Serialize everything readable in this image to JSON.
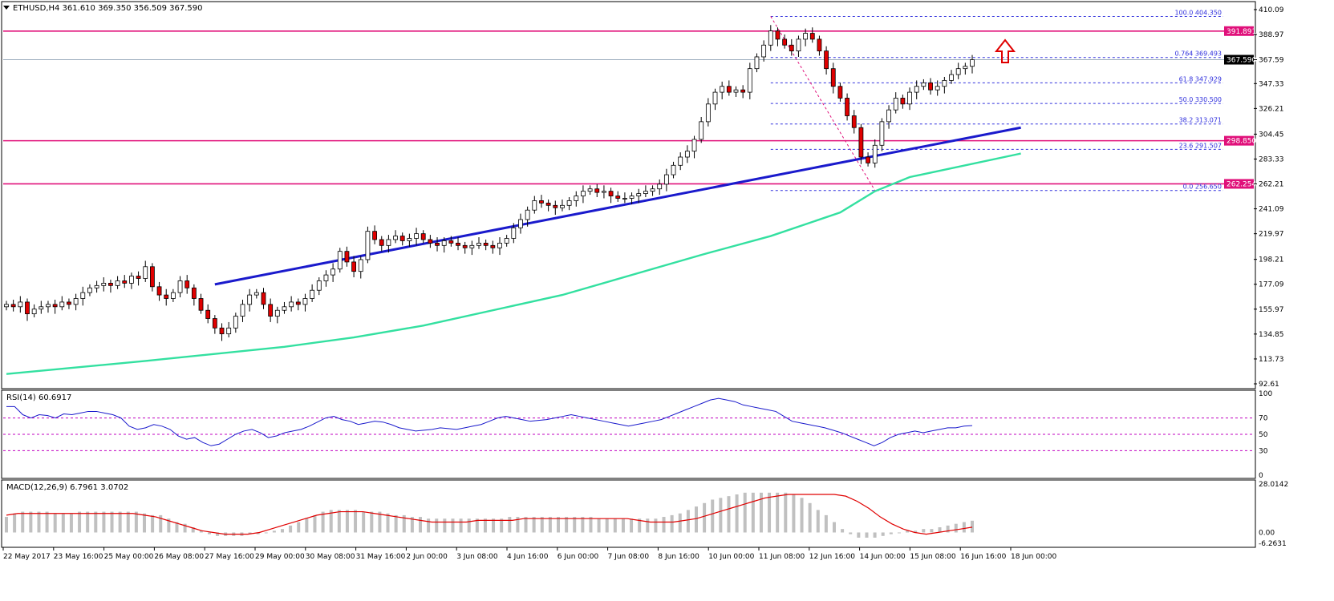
{
  "header": {
    "symbol_line": "ETHUSD,H4  361.610 369.350 356.509 367.590",
    "rsi_line": "RSI(14) 60.6917",
    "macd_line": "MACD(12,26,9) 6.7961 3.0702"
  },
  "colors": {
    "bull": "#ffffff",
    "bear": "#e00000",
    "trendline": "#1a1acc",
    "ma": "#33e0a0",
    "level": "#e0107a",
    "fib": "#3030dd",
    "rsi": "#1a1acc",
    "macd_hist": "#c0c0c0",
    "macd_signal": "#e00000",
    "arrow": "#e00000"
  },
  "chart_data": [
    {
      "type": "candlestick",
      "title": "ETHUSD,H4",
      "ohlc_header": {
        "open": 361.61,
        "high": 369.35,
        "low": 356.509,
        "close": 367.59
      },
      "y_ticks": [
        410.09,
        388.97,
        367.59,
        347.33,
        326.21,
        304.45,
        283.33,
        262.21,
        241.09,
        219.97,
        198.21,
        177.09,
        155.97,
        134.85,
        113.73,
        92.61
      ],
      "ylim": [
        92.61,
        410.09
      ],
      "x_ticks": [
        "22 May 2017",
        "23 May 16:00",
        "25 May 00:00",
        "26 May 08:00",
        "27 May 16:00",
        "29 May 00:00",
        "30 May 08:00",
        "31 May 16:00",
        "2 Jun 00:00",
        "3 Jun 08:00",
        "4 Jun 16:00",
        "6 Jun 00:00",
        "7 Jun 08:00",
        "8 Jun 16:00",
        "10 Jun 00:00",
        "11 Jun 08:00",
        "12 Jun 16:00",
        "14 Jun 00:00",
        "15 Jun 08:00",
        "16 Jun 16:00",
        "18 Jun 00:00"
      ],
      "candle_closes": [
        160,
        158,
        162,
        152,
        156,
        158,
        160,
        158,
        162,
        160,
        165,
        170,
        174,
        176,
        178,
        176,
        180,
        178,
        184,
        182,
        192,
        175,
        168,
        165,
        170,
        180,
        174,
        165,
        155,
        148,
        140,
        135,
        140,
        150,
        160,
        168,
        170,
        160,
        150,
        155,
        158,
        162,
        160,
        165,
        172,
        180,
        185,
        190,
        205,
        196,
        188,
        198,
        222,
        215,
        210,
        215,
        218,
        214,
        216,
        220,
        215,
        212,
        210,
        214,
        212,
        210,
        208,
        210,
        212,
        210,
        208,
        212,
        216,
        225,
        232,
        240,
        248,
        246,
        244,
        242,
        244,
        248,
        252,
        256,
        258,
        255,
        256,
        252,
        250,
        250,
        252,
        254,
        256,
        258,
        262,
        270,
        278,
        285,
        290,
        300,
        315,
        330,
        340,
        345,
        340,
        342,
        340,
        360,
        370,
        380,
        392,
        385,
        380,
        375,
        385,
        390,
        385,
        375,
        360,
        345,
        335,
        320,
        310,
        285,
        280,
        295,
        315,
        325,
        335,
        330,
        340,
        345,
        348,
        342,
        345,
        350,
        355,
        360,
        362,
        367.59
      ],
      "levels": [
        391.891,
        298.85,
        262.254
      ],
      "last_price": 367.59,
      "fib_levels": [
        {
          "ratio": "100.0",
          "value": "404.350"
        },
        {
          "ratio": "0.764",
          "value": "369.493"
        },
        {
          "ratio": "61.8",
          "value": "347.929"
        },
        {
          "ratio": "50.0",
          "value": "330.500"
        },
        {
          "ratio": "38.2",
          "value": "313.071"
        },
        {
          "ratio": "23.6",
          "value": "291.507"
        },
        {
          "ratio": "0.0",
          "value": "256.650"
        }
      ],
      "trendline_points": [
        [
          30,
          177
        ],
        [
          146,
          310
        ]
      ],
      "ma_series": [
        [
          0,
          101
        ],
        [
          20,
          112
        ],
        [
          40,
          124
        ],
        [
          50,
          132
        ],
        [
          60,
          142
        ],
        [
          80,
          168
        ],
        [
          100,
          202
        ],
        [
          110,
          218
        ],
        [
          120,
          238
        ],
        [
          125,
          256
        ],
        [
          130,
          268
        ],
        [
          146,
          288
        ]
      ],
      "price_labels": [
        "391.891",
        "367.590",
        "298.850",
        "262.254"
      ]
    },
    {
      "type": "line",
      "title": "RSI(14) 60.6917",
      "y_ticks": [
        "100",
        "70",
        "50",
        "30",
        "0"
      ],
      "ylim": [
        0,
        100
      ],
      "levels": [
        70,
        50,
        30
      ],
      "values": [
        84,
        84,
        74,
        70,
        74,
        73,
        70,
        75,
        74,
        76,
        78,
        78,
        76,
        74,
        70,
        60,
        56,
        58,
        62,
        60,
        56,
        48,
        44,
        46,
        40,
        36,
        38,
        44,
        50,
        54,
        56,
        52,
        46,
        48,
        52,
        54,
        56,
        60,
        65,
        70,
        72,
        68,
        66,
        62,
        64,
        66,
        65,
        62,
        58,
        56,
        54,
        55,
        56,
        58,
        57,
        56,
        58,
        60,
        62,
        66,
        70,
        72,
        70,
        68,
        66,
        67,
        68,
        70,
        72,
        74,
        72,
        70,
        68,
        66,
        64,
        62,
        60,
        62,
        64,
        66,
        68,
        72,
        76,
        80,
        84,
        88,
        92,
        94,
        92,
        90,
        86,
        84,
        82,
        80,
        78,
        72,
        66,
        64,
        62,
        60,
        58,
        55,
        52,
        48,
        44,
        40,
        36,
        40,
        46,
        50,
        52,
        54,
        52,
        54,
        56,
        58,
        58,
        60,
        60.6917
      ]
    },
    {
      "type": "bar",
      "title": "MACD(12,26,9) 6.7961 3.0702",
      "y_ticks": [
        "28.0142",
        "0.00",
        "-6.2631"
      ],
      "ylim": [
        -6.2631,
        28.0142
      ],
      "histogram": [
        9,
        11,
        12,
        12,
        12,
        12,
        11,
        11,
        11,
        12,
        12,
        12,
        12,
        12,
        12,
        12,
        12,
        11,
        10,
        10,
        8,
        6,
        5,
        3,
        1,
        -1,
        -2,
        -2,
        -2,
        -2,
        -1,
        -1,
        0,
        1,
        2,
        4,
        6,
        8,
        10,
        12,
        13,
        13,
        13,
        13,
        12,
        12,
        12,
        11,
        10,
        10,
        9,
        9,
        8,
        8,
        8,
        8,
        8,
        8,
        8,
        8,
        8,
        8,
        9,
        9,
        9,
        9,
        9,
        9,
        9,
        9,
        9,
        9,
        9,
        8,
        8,
        8,
        8,
        8,
        8,
        8,
        8,
        9,
        10,
        11,
        13,
        15,
        17,
        19,
        20,
        21,
        22,
        23,
        23,
        23,
        23,
        23,
        23,
        22,
        20,
        17,
        13,
        10,
        6,
        2,
        -1,
        -3,
        -3,
        -3,
        -2,
        -1,
        0,
        1,
        1,
        2,
        2,
        3,
        4,
        5,
        6,
        6.7961
      ],
      "signal": [
        10,
        11,
        11,
        11,
        11,
        11,
        11,
        11,
        11,
        11,
        11,
        11,
        10,
        9,
        7,
        5,
        3,
        1,
        0,
        -1,
        -1,
        -1,
        0,
        2,
        4,
        6,
        8,
        10,
        11,
        12,
        12,
        12,
        11,
        10,
        9,
        8,
        7,
        6,
        6,
        6,
        6,
        7,
        7,
        7,
        7,
        8,
        8,
        8,
        8,
        8,
        8,
        8,
        8,
        8,
        8,
        7,
        6,
        6,
        6,
        7,
        8,
        10,
        12,
        14,
        16,
        18,
        20,
        21,
        22,
        22,
        22,
        22,
        22,
        21,
        18,
        14,
        9,
        5,
        2,
        0,
        -1,
        0,
        1,
        2,
        3.0702
      ]
    }
  ]
}
